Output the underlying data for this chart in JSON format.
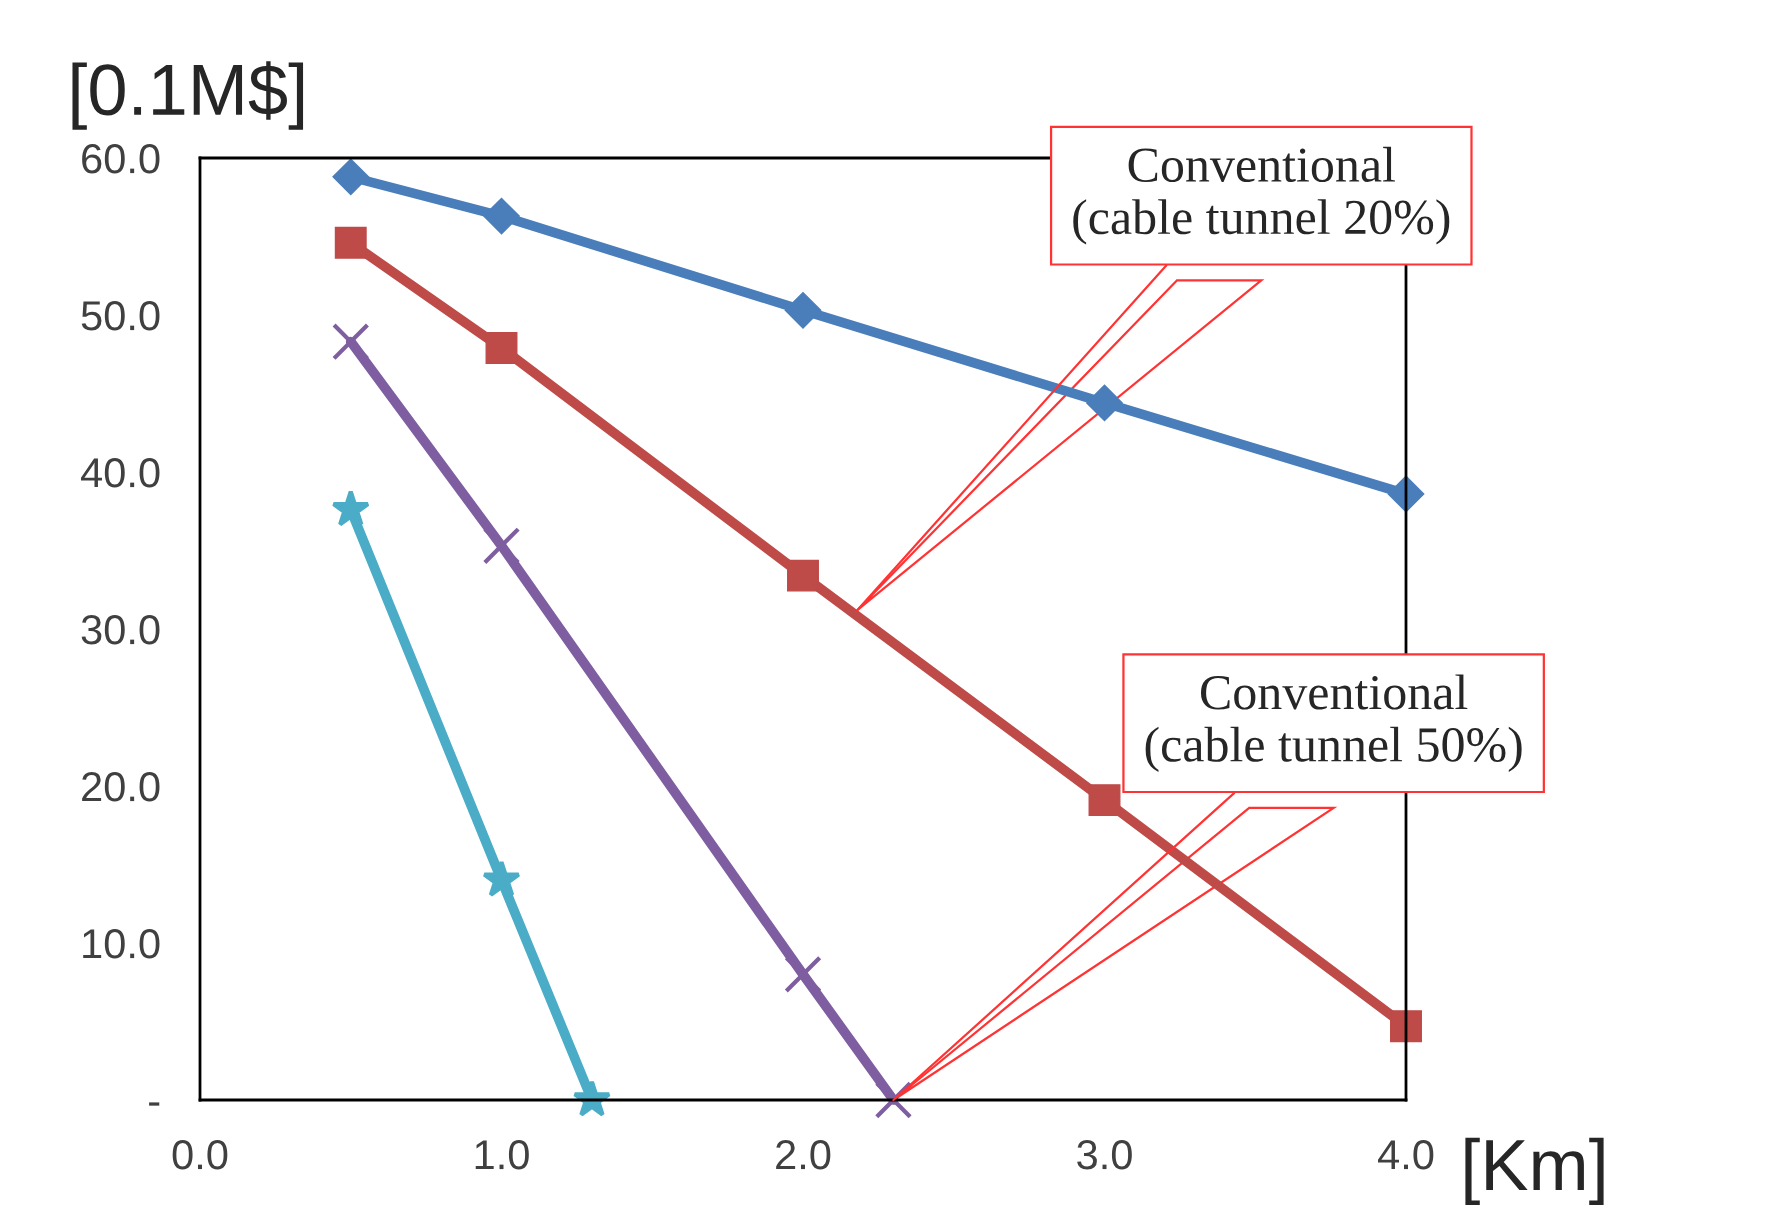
{
  "chart_data": {
    "type": "line",
    "xlabel": "[Km]",
    "ylabel": "[0.1M$]",
    "xlim": [
      0,
      4
    ],
    "ylim": [
      0,
      60
    ],
    "xticks": [
      {
        "value": 0,
        "label": "0.0"
      },
      {
        "value": 1,
        "label": "1.0"
      },
      {
        "value": 2,
        "label": "2.0"
      },
      {
        "value": 3,
        "label": "3.0"
      },
      {
        "value": 4,
        "label": "4.0"
      }
    ],
    "yticks": [
      {
        "value": 0,
        "label": "-"
      },
      {
        "value": 10,
        "label": "10.0"
      },
      {
        "value": 20,
        "label": "20.0"
      },
      {
        "value": 30,
        "label": "30.0"
      },
      {
        "value": 40,
        "label": "40.0"
      },
      {
        "value": 50,
        "label": "50.0"
      },
      {
        "value": 60,
        "label": "60.0"
      }
    ],
    "grid": false,
    "legend": false,
    "line_style": "solid",
    "series": [
      {
        "color": "#4a7ebb",
        "marker": "diamond",
        "x": [
          0.5,
          1,
          2,
          3,
          4
        ],
        "values": [
          58.8,
          56.3,
          50.3,
          44.4,
          38.6
        ]
      },
      {
        "color": "#be4b48",
        "marker": "square",
        "x": [
          0.5,
          1,
          2,
          3,
          4
        ],
        "values": [
          54.6,
          47.9,
          33.4,
          19.1,
          4.7
        ]
      },
      {
        "color": "#7e5ea0",
        "marker": "cross",
        "x": [
          0.5,
          1,
          2,
          2.3
        ],
        "values": [
          48.3,
          35.3,
          8.0,
          0
        ]
      },
      {
        "color": "#4aacc6",
        "marker": "star",
        "x": [
          0.5,
          1,
          1.3
        ],
        "values": [
          37.6,
          14.0,
          0
        ]
      }
    ],
    "annotations": [
      {
        "text": "Conventional\n(cable tunnel 20%)",
        "x": 2.18,
        "y": 31.2
      },
      {
        "text": "Conventional\n(cable tunnel 50%)",
        "x": 2.3,
        "y": 0
      }
    ]
  }
}
